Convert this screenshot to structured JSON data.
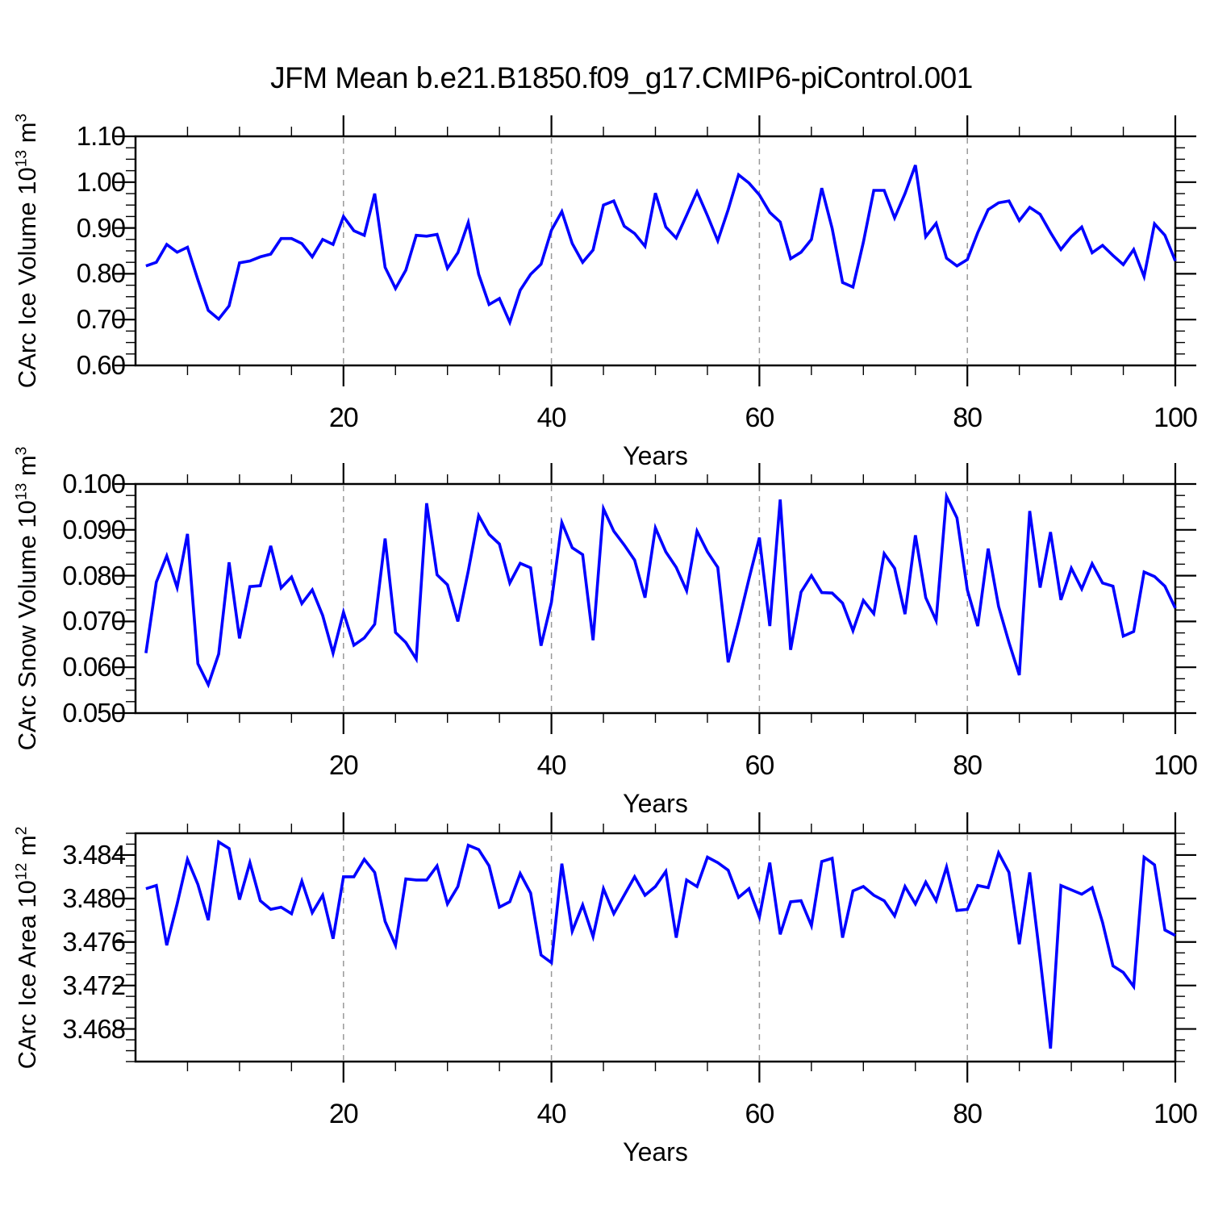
{
  "title": "JFM Mean b.e21.B1850.f09_g17.CMIP6-piControl.001",
  "style": {
    "background": "#ffffff",
    "line_color": "#0000ff",
    "grid_color": "#999999",
    "frame_color": "#000000",
    "text_color": "#000000"
  },
  "chart_data": {
    "type": "line",
    "x_label": "Years",
    "x_range": [
      0,
      100
    ],
    "grid_x": [
      20,
      40,
      60,
      80
    ],
    "grid_style": "dashed-vertical",
    "legend": "none",
    "years": [
      1,
      2,
      3,
      4,
      5,
      6,
      7,
      8,
      9,
      10,
      11,
      12,
      13,
      14,
      15,
      16,
      17,
      18,
      19,
      20,
      21,
      22,
      23,
      24,
      25,
      26,
      27,
      28,
      29,
      30,
      31,
      32,
      33,
      34,
      35,
      36,
      37,
      38,
      39,
      40,
      41,
      42,
      43,
      44,
      45,
      46,
      47,
      48,
      49,
      50,
      51,
      52,
      53,
      54,
      55,
      56,
      57,
      58,
      59,
      60,
      61,
      62,
      63,
      64,
      65,
      66,
      67,
      68,
      69,
      70,
      71,
      72,
      73,
      74,
      75,
      76,
      77,
      78,
      79,
      80,
      81,
      82,
      83,
      84,
      85,
      86,
      87,
      88,
      89,
      90,
      91,
      92,
      93,
      94,
      95,
      96,
      97,
      98,
      99,
      100
    ],
    "panels": [
      {
        "name": "ice-volume-panel",
        "ylabel": {
          "pre": "CArc Ice Volume 10",
          "sup1": "13",
          "mid": " m",
          "sup2": "3",
          "full": "CArc Ice Volume 10^13 m^3"
        },
        "xlabel": "Years",
        "ylim": [
          0.6,
          1.1
        ],
        "ytick_labels": [
          "0.60",
          "0.70",
          "0.80",
          "0.90",
          "1.00",
          "1.10"
        ],
        "ytick_values": [
          0.6,
          0.7,
          0.8,
          0.9,
          1.0,
          1.1
        ],
        "yminor_step": 0.025,
        "xtick_labels": [
          "20",
          "40",
          "60",
          "80",
          "100"
        ],
        "xtick_values": [
          20,
          40,
          60,
          80,
          100
        ],
        "xminor_step": 5,
        "line_color": "#0000ff",
        "values": [
          0.817,
          0.825,
          0.864,
          0.847,
          0.858,
          0.787,
          0.72,
          0.701,
          0.73,
          0.824,
          0.828,
          0.837,
          0.843,
          0.877,
          0.877,
          0.866,
          0.837,
          0.875,
          0.864,
          0.925,
          0.894,
          0.884,
          0.975,
          0.814,
          0.768,
          0.808,
          0.884,
          0.882,
          0.886,
          0.812,
          0.846,
          0.912,
          0.799,
          0.733,
          0.746,
          0.694,
          0.764,
          0.799,
          0.821,
          0.895,
          0.936,
          0.866,
          0.825,
          0.852,
          0.95,
          0.959,
          0.904,
          0.888,
          0.86,
          0.976,
          0.902,
          0.878,
          0.928,
          0.979,
          0.927,
          0.872,
          0.94,
          1.016,
          0.998,
          0.972,
          0.934,
          0.913,
          0.833,
          0.847,
          0.875,
          0.987,
          0.899,
          0.781,
          0.771,
          0.869,
          0.982,
          0.982,
          0.922,
          0.975,
          1.037,
          0.881,
          0.91,
          0.834,
          0.817,
          0.831,
          0.89,
          0.94,
          0.955,
          0.959,
          0.916,
          0.945,
          0.93,
          0.89,
          0.853,
          0.881,
          0.902,
          0.846,
          0.862,
          0.84,
          0.82,
          0.853,
          0.794,
          0.909,
          0.884,
          0.828
        ]
      },
      {
        "name": "snow-volume-panel",
        "ylabel": {
          "pre": "CArc Snow Volume 10",
          "sup1": "13",
          "mid": " m",
          "sup2": "3",
          "full": "CArc Snow Volume 10^13 m^3"
        },
        "xlabel": "Years",
        "ylim": [
          0.05,
          0.1
        ],
        "ytick_labels": [
          "0.050",
          "0.060",
          "0.070",
          "0.080",
          "0.090",
          "0.100"
        ],
        "ytick_values": [
          0.05,
          0.06,
          0.07,
          0.08,
          0.09,
          0.1
        ],
        "yminor_step": 0.0025,
        "xtick_labels": [
          "20",
          "40",
          "60",
          "80",
          "100"
        ],
        "xtick_values": [
          20,
          40,
          60,
          80,
          100
        ],
        "xminor_step": 5,
        "line_color": "#0000ff",
        "values": [
          0.0631,
          0.0786,
          0.0843,
          0.0774,
          0.0891,
          0.0608,
          0.0562,
          0.0629,
          0.0829,
          0.0663,
          0.0776,
          0.0778,
          0.0865,
          0.0773,
          0.0797,
          0.0739,
          0.0769,
          0.0713,
          0.0631,
          0.072,
          0.0648,
          0.0664,
          0.0694,
          0.0881,
          0.0676,
          0.0654,
          0.0618,
          0.0958,
          0.0802,
          0.078,
          0.07,
          0.081,
          0.0931,
          0.089,
          0.0869,
          0.0784,
          0.0827,
          0.0817,
          0.0647,
          0.0742,
          0.0916,
          0.0861,
          0.0846,
          0.0659,
          0.0946,
          0.0897,
          0.0867,
          0.0834,
          0.0752,
          0.0904,
          0.0852,
          0.0818,
          0.0767,
          0.0897,
          0.0852,
          0.0818,
          0.0611,
          0.0699,
          0.0793,
          0.0883,
          0.069,
          0.0966,
          0.0638,
          0.0764,
          0.08,
          0.0763,
          0.0762,
          0.074,
          0.068,
          0.0746,
          0.0717,
          0.0848,
          0.0816,
          0.0716,
          0.0888,
          0.0752,
          0.0702,
          0.0973,
          0.0926,
          0.0769,
          0.069,
          0.0859,
          0.0733,
          0.0654,
          0.0583,
          0.0941,
          0.0774,
          0.0895,
          0.0747,
          0.0816,
          0.0771,
          0.0826,
          0.0784,
          0.0777,
          0.0668,
          0.0678,
          0.0808,
          0.0798,
          0.0777,
          0.0729
        ]
      },
      {
        "name": "ice-area-panel",
        "ylabel": {
          "pre": "CArc Ice Area 10",
          "sup1": "12",
          "mid": " m",
          "sup2": "2",
          "full": "CArc Ice Area 10^12 m^2"
        },
        "xlabel": "Years",
        "ylim": [
          3.465,
          3.486
        ],
        "ytick_labels": [
          "3.468",
          "3.472",
          "3.476",
          "3.480",
          "3.484"
        ],
        "ytick_values": [
          3.468,
          3.472,
          3.476,
          3.48,
          3.484
        ],
        "yminor_step": 0.001,
        "xtick_labels": [
          "20",
          "40",
          "60",
          "80",
          "100"
        ],
        "xtick_values": [
          20,
          40,
          60,
          80,
          100
        ],
        "xminor_step": 5,
        "line_color": "#0000ff",
        "values": [
          3.4809,
          3.4812,
          3.4757,
          3.4795,
          3.4836,
          3.4813,
          3.478,
          3.4852,
          3.4846,
          3.4799,
          3.4833,
          3.4798,
          3.479,
          3.4792,
          3.4786,
          3.4816,
          3.4787,
          3.4803,
          3.4763,
          3.482,
          3.482,
          3.4836,
          3.4824,
          3.4779,
          3.4757,
          3.4818,
          3.4817,
          3.4817,
          3.483,
          3.4795,
          3.4811,
          3.4849,
          3.4845,
          3.483,
          3.4792,
          3.4797,
          3.4823,
          3.4805,
          3.4748,
          3.4741,
          3.4832,
          3.477,
          3.4794,
          3.4765,
          3.4809,
          3.4786,
          3.4803,
          3.482,
          3.4803,
          3.4811,
          3.4825,
          3.4764,
          3.4817,
          3.4811,
          3.4838,
          3.4833,
          3.4826,
          3.4801,
          3.4809,
          3.4783,
          3.4833,
          3.4767,
          3.4797,
          3.4798,
          3.4775,
          3.4834,
          3.4837,
          3.4764,
          3.4807,
          3.4811,
          3.4803,
          3.4798,
          3.4784,
          3.4811,
          3.4795,
          3.4815,
          3.4798,
          3.4829,
          3.4789,
          3.479,
          3.4812,
          3.481,
          3.4842,
          3.4824,
          3.4758,
          3.4824,
          3.4745,
          3.4662,
          3.4812,
          3.4808,
          3.4804,
          3.481,
          3.4778,
          3.4738,
          3.4732,
          3.4719,
          3.4838,
          3.4831,
          3.4771,
          3.4766
        ]
      }
    ]
  }
}
